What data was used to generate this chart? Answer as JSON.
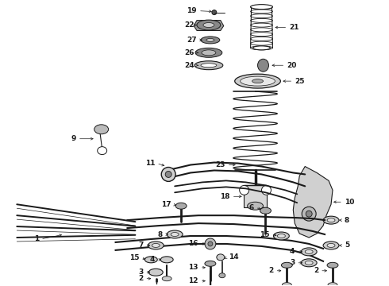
{
  "bg_color": "#ffffff",
  "line_color": "#1a1a1a",
  "fig_width": 4.9,
  "fig_height": 3.6,
  "dpi": 100,
  "aspect": "auto",
  "xlim": [
    0,
    490
  ],
  "ylim": [
    0,
    360
  ]
}
